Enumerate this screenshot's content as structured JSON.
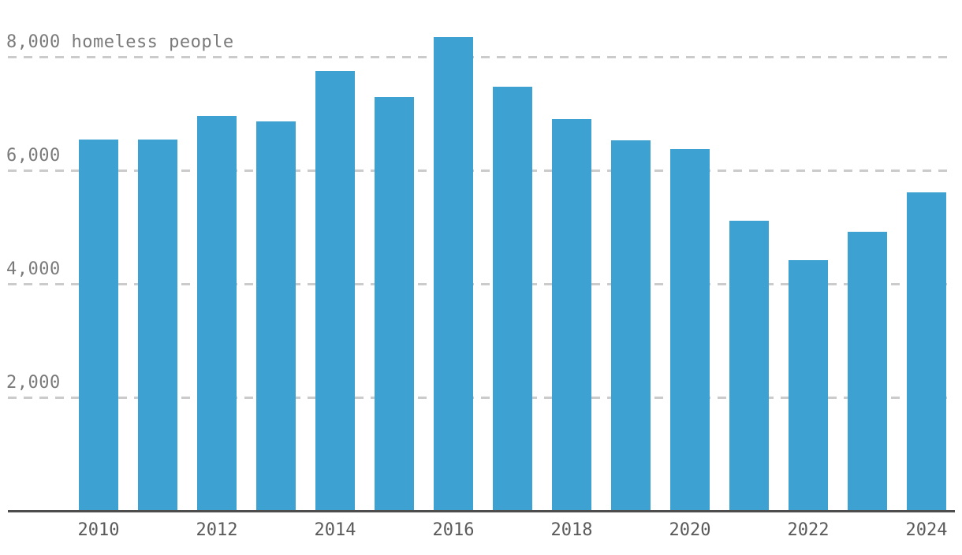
{
  "chart_data": {
    "type": "bar",
    "title": "",
    "unit_text": "homeless people",
    "categories": [
      "2010",
      "2011",
      "2012",
      "2013",
      "2014",
      "2015",
      "2016",
      "2017",
      "2018",
      "2019",
      "2020",
      "2021",
      "2022",
      "2023",
      "2024"
    ],
    "values": [
      6539,
      6546,
      6954,
      6865,
      7748,
      7298,
      8350,
      7473,
      6904,
      6521,
      6380,
      5111,
      4410,
      4922,
      5616
    ],
    "y_ticks": [
      {
        "value": 8000,
        "label": "8,000 homeless people"
      },
      {
        "value": 6000,
        "label": "6,000"
      },
      {
        "value": 4000,
        "label": "4,000"
      },
      {
        "value": 2000,
        "label": "2,000"
      }
    ],
    "x_tick_labels": [
      "2010",
      "2012",
      "2014",
      "2016",
      "2018",
      "2020",
      "2022",
      "2024"
    ],
    "ylim": [
      0,
      9000
    ],
    "grid": "horizontal-dashed",
    "legend": "none",
    "colors": {
      "bar": "#3da1d2",
      "gridline": "#cbcbcb",
      "axis_line": "#4d4d4d",
      "y_tick_text": "#7a7a7a",
      "x_tick_text": "#5a5a5a",
      "background": "#ffffff"
    }
  }
}
